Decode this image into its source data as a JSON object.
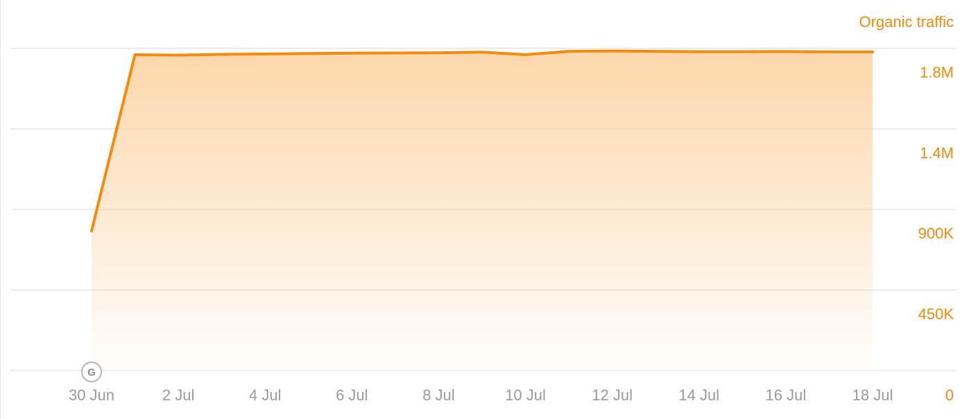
{
  "chart_data": {
    "type": "area",
    "title": "",
    "xlabel": "",
    "ylabel": "",
    "series_title": "Organic traffic",
    "x": [
      "2024-06-30",
      "2024-07-01",
      "2024-07-02",
      "2024-07-03",
      "2024-07-04",
      "2024-07-05",
      "2024-07-06",
      "2024-07-07",
      "2024-07-08",
      "2024-07-09",
      "2024-07-10",
      "2024-07-11",
      "2024-07-12",
      "2024-07-13",
      "2024-07-14",
      "2024-07-15",
      "2024-07-16",
      "2024-07-17",
      "2024-07-18"
    ],
    "series": [
      {
        "values": [
          780000,
          1765000,
          1763000,
          1767000,
          1769000,
          1772000,
          1774000,
          1775000,
          1776000,
          1780000,
          1765000,
          1784000,
          1786000,
          1784000,
          1782000,
          1782000,
          1783000,
          1781000,
          1781000
        ]
      }
    ],
    "x_tick_labels": [
      "30 Jun",
      "2 Jul",
      "4 Jul",
      "6 Jul",
      "8 Jul",
      "10 Jul",
      "12 Jul",
      "14 Jul",
      "16 Jul",
      "18 Jul"
    ],
    "x_tick_dates": [
      "2024-06-30",
      "2024-07-02",
      "2024-07-04",
      "2024-07-06",
      "2024-07-08",
      "2024-07-10",
      "2024-07-12",
      "2024-07-14",
      "2024-07-16",
      "2024-07-18"
    ],
    "y_ticks": [
      0,
      450000,
      900000,
      1350000,
      1800000
    ],
    "y_tick_labels": [
      "0",
      "450K",
      "900K",
      "1.4M",
      "1.8M"
    ],
    "ylim": [
      0,
      1800000
    ],
    "y_axis_position": "right",
    "grid": true,
    "legend": "none",
    "colors": {
      "line": "#f7890c",
      "fill": "#fbb766",
      "grid": "#e6e6e6",
      "x_tick": "#9a9a9a"
    },
    "annotations": [
      {
        "date": "2024-06-30",
        "label": "G",
        "icon": "google-update-icon"
      }
    ]
  }
}
